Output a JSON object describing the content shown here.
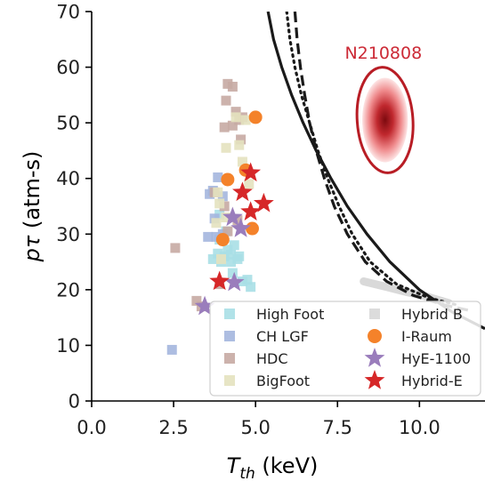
{
  "chart_data": {
    "type": "scatter",
    "title": "",
    "xlabel_main": "T",
    "xlabel_sub": "th",
    "xlabel_unit": " (keV)",
    "ylabel_greek": "pτ",
    "ylabel_unit": " (atm-s)",
    "xlim": [
      0,
      12
    ],
    "ylim": [
      0,
      70
    ],
    "xticks": [
      "0.0",
      "2.5",
      "5.0",
      "7.5",
      "10.0"
    ],
    "xtick_values": [
      0,
      2.5,
      5.0,
      7.5,
      10.0
    ],
    "yticks": [
      "0",
      "10",
      "20",
      "30",
      "40",
      "50",
      "60",
      "70"
    ],
    "ytick_values": [
      0,
      10,
      20,
      30,
      40,
      50,
      60,
      70
    ],
    "grid": false,
    "legend_placement": "bottom-right",
    "annotation": {
      "text": "N210808",
      "x": 8.9,
      "y": 61.5,
      "color": "#cc2a36"
    },
    "ellipse": {
      "cx": 8.95,
      "cy": 50.5,
      "rx": 0.85,
      "ry": 9.5,
      "color": "#b81d25"
    },
    "curves": [
      {
        "style": "solid",
        "color": "#1a1a1a",
        "points": [
          [
            5.38,
            70
          ],
          [
            5.55,
            65
          ],
          [
            5.8,
            60
          ],
          [
            6.1,
            55
          ],
          [
            6.45,
            50
          ],
          [
            6.85,
            45
          ],
          [
            7.3,
            40
          ],
          [
            7.8,
            35
          ],
          [
            8.4,
            30
          ],
          [
            9.1,
            25
          ],
          [
            10.0,
            20
          ],
          [
            11.0,
            16
          ],
          [
            12.0,
            13
          ]
        ]
      },
      {
        "style": "dotted",
        "color": "#1a1a1a",
        "points": [
          [
            5.95,
            70
          ],
          [
            6.05,
            65
          ],
          [
            6.2,
            60
          ],
          [
            6.4,
            55
          ],
          [
            6.65,
            50
          ],
          [
            6.9,
            45
          ],
          [
            7.2,
            40
          ],
          [
            7.55,
            35
          ],
          [
            7.95,
            30
          ],
          [
            8.5,
            25
          ],
          [
            9.3,
            21
          ],
          [
            10.3,
            18.5
          ],
          [
            11.2,
            17.2
          ]
        ]
      },
      {
        "style": "dashed",
        "color": "#1a1a1a",
        "points": [
          [
            6.2,
            70
          ],
          [
            6.27,
            65
          ],
          [
            6.37,
            60
          ],
          [
            6.5,
            55
          ],
          [
            6.65,
            50
          ],
          [
            6.85,
            45
          ],
          [
            7.1,
            40
          ],
          [
            7.4,
            35
          ],
          [
            7.8,
            30
          ],
          [
            8.35,
            25
          ],
          [
            9.0,
            21.5
          ],
          [
            9.8,
            19
          ],
          [
            10.8,
            17.2
          ],
          [
            11.5,
            16.3
          ]
        ]
      }
    ],
    "gray_band": {
      "color": "#d9d9d9",
      "points": [
        [
          8.3,
          21.5
        ],
        [
          9.0,
          20.5
        ],
        [
          9.6,
          19.6
        ],
        [
          10.2,
          18.8
        ],
        [
          10.9,
          17.6
        ]
      ]
    },
    "series": [
      {
        "name": "High Foot",
        "marker": "square",
        "color": "#a9dfe6",
        "points": [
          [
            3.7,
            25.5
          ],
          [
            3.85,
            26.5
          ],
          [
            3.95,
            25
          ],
          [
            4.05,
            26
          ],
          [
            4.15,
            27.2
          ],
          [
            4.25,
            26.3
          ],
          [
            4.35,
            28
          ],
          [
            4.45,
            25.5
          ],
          [
            4.25,
            25
          ],
          [
            4.5,
            26
          ],
          [
            3.9,
            29
          ],
          [
            4.3,
            23
          ],
          [
            4.6,
            21.5
          ],
          [
            4.75,
            21.8
          ],
          [
            4.85,
            20.5
          ],
          [
            3.9,
            33.5
          ],
          [
            4.1,
            30.5
          ]
        ]
      },
      {
        "name": "CH LGF",
        "marker": "square",
        "color": "#a4b6de",
        "points": [
          [
            2.45,
            9.2
          ],
          [
            3.55,
            29.5
          ],
          [
            3.6,
            37.2
          ],
          [
            3.7,
            37.8
          ],
          [
            3.85,
            40.2
          ],
          [
            3.75,
            32.8
          ],
          [
            4.0,
            36.8
          ],
          [
            3.8,
            29.5
          ],
          [
            4.0,
            30
          ]
        ]
      },
      {
        "name": "HDC",
        "marker": "square",
        "color": "#c7aaa3",
        "points": [
          [
            2.55,
            27.5
          ],
          [
            3.2,
            18
          ],
          [
            3.35,
            17
          ],
          [
            3.75,
            37.5
          ],
          [
            4.05,
            35
          ],
          [
            4.1,
            54
          ],
          [
            4.15,
            57
          ],
          [
            4.3,
            56.5
          ],
          [
            4.3,
            49.5
          ],
          [
            4.4,
            52
          ],
          [
            4.5,
            50.5
          ],
          [
            4.6,
            51
          ],
          [
            4.55,
            47
          ],
          [
            4.45,
            32.5
          ],
          [
            4.15,
            30.5
          ],
          [
            3.9,
            21
          ],
          [
            4.05,
            49.2
          ]
        ]
      },
      {
        "name": "BigFoot",
        "marker": "square",
        "color": "#e4e2bf",
        "points": [
          [
            4.1,
            45.5
          ],
          [
            4.5,
            46
          ],
          [
            4.4,
            51
          ],
          [
            4.7,
            50.5
          ],
          [
            4.6,
            43
          ],
          [
            4.8,
            39
          ],
          [
            3.85,
            37.5
          ],
          [
            4.1,
            33
          ],
          [
            3.9,
            35.5
          ],
          [
            3.8,
            32
          ],
          [
            3.95,
            25.5
          ]
        ]
      },
      {
        "name": "Hybrid B",
        "marker": "square",
        "color": "#d8d8d8",
        "points": []
      },
      {
        "name": "I-Raum",
        "marker": "circle",
        "color": "#f4822a",
        "points": [
          [
            5.0,
            51
          ],
          [
            4.7,
            41.5
          ],
          [
            4.15,
            39.8
          ],
          [
            4.9,
            31
          ],
          [
            4.0,
            29
          ]
        ]
      },
      {
        "name": "HyE-1100",
        "marker": "star",
        "color": "#9a7dbc",
        "points": [
          [
            4.3,
            33
          ],
          [
            4.55,
            31
          ],
          [
            4.35,
            21.3
          ],
          [
            3.45,
            17
          ]
        ]
      },
      {
        "name": "Hybrid-E",
        "marker": "star",
        "color": "#d62728",
        "points": [
          [
            4.85,
            41
          ],
          [
            4.6,
            37.5
          ],
          [
            5.25,
            35.5
          ],
          [
            4.85,
            34
          ],
          [
            3.9,
            21.5
          ]
        ]
      }
    ],
    "legend": {
      "col1": [
        "High Foot",
        "CH LGF",
        "HDC",
        "BigFoot"
      ],
      "col2": [
        "Hybrid B",
        "I-Raum",
        "HyE-1100",
        "Hybrid-E"
      ]
    }
  }
}
